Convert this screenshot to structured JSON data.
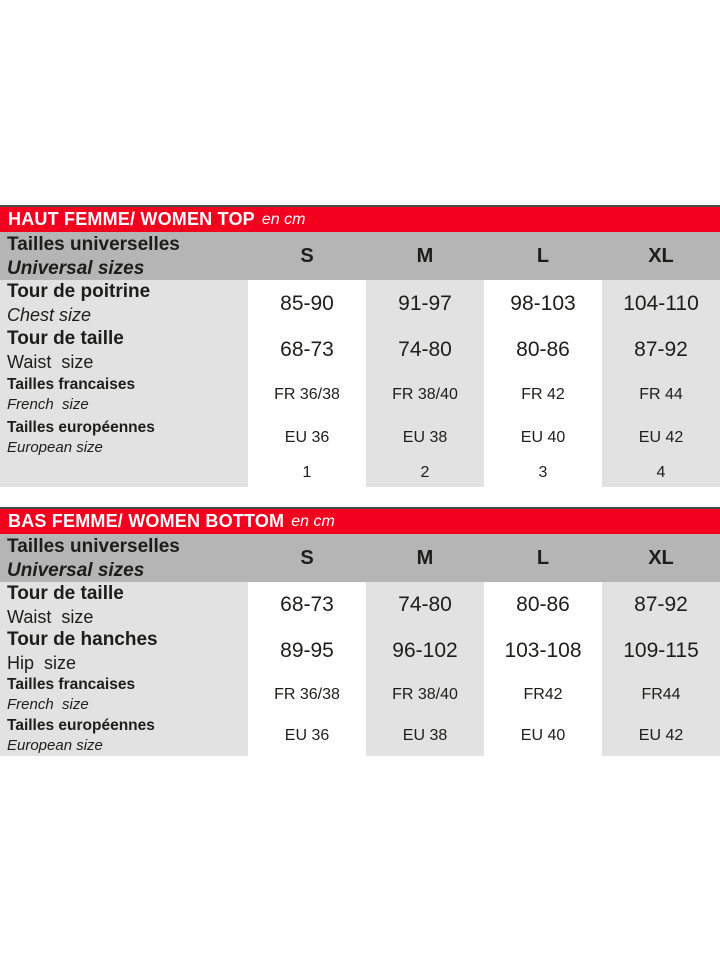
{
  "colors": {
    "brand_red": "#f2001e",
    "header_gray": "#b5b5b5",
    "band_gray": "#e2e2e2",
    "text": "#1d1d1b"
  },
  "table_top": {
    "title": "HAUT FEMME/ WOMEN TOP",
    "unit": "en cm",
    "header": {
      "label_fr": "Tailles universelles",
      "label_en": "Universal sizes",
      "sizes": [
        "S",
        "M",
        "L",
        "XL"
      ]
    },
    "rows": [
      {
        "label_fr": "Tour de poitrine",
        "label_en": "Chest size",
        "values": [
          "85-90",
          "91-97",
          "98-103",
          "104-110"
        ]
      },
      {
        "label_fr": "Tour de taille",
        "label_en": "Waist  size",
        "values": [
          "68-73",
          "74-80",
          "80-86",
          "87-92"
        ]
      },
      {
        "label_fr": "Tailles francaises",
        "label_en": "French  size",
        "values": [
          "FR 36/38",
          "FR 38/40",
          "FR 42",
          "FR 44"
        ]
      },
      {
        "label_fr": "Tailles européennes",
        "label_en": "European size",
        "values": [
          "EU 36",
          "EU 38",
          "EU 40",
          "EU 42"
        ]
      },
      {
        "label_fr": "",
        "label_en": "",
        "values": [
          "1",
          "2",
          "3",
          "4"
        ]
      }
    ]
  },
  "table_bottom": {
    "title": "BAS FEMME/ WOMEN BOTTOM",
    "unit": "en cm",
    "header": {
      "label_fr": "Tailles universelles",
      "label_en": "Universal sizes",
      "sizes": [
        "S",
        "M",
        "L",
        "XL"
      ]
    },
    "rows": [
      {
        "label_fr": "Tour de taille",
        "label_en": "Waist  size",
        "values": [
          "68-73",
          "74-80",
          "80-86",
          "87-92"
        ]
      },
      {
        "label_fr": "Tour de hanches",
        "label_en": "Hip  size",
        "values": [
          "89-95",
          "96-102",
          "103-108",
          "109-115"
        ]
      },
      {
        "label_fr": "Tailles francaises",
        "label_en": "French  size",
        "values": [
          "FR 36/38",
          "FR 38/40",
          "FR42",
          "FR44"
        ]
      },
      {
        "label_fr": "Tailles européennes",
        "label_en": "European size",
        "values": [
          "EU 36",
          "EU 38",
          "EU 40",
          "EU 42"
        ]
      }
    ]
  }
}
